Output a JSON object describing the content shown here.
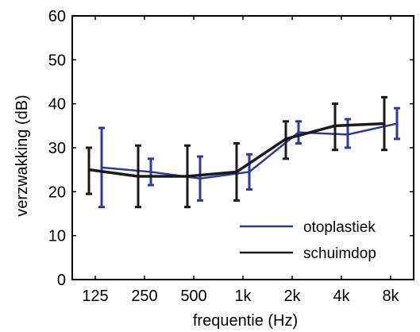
{
  "chart_data": {
    "type": "line",
    "xlabel": "frequentie (Hz)",
    "ylabel": "verzwakking (dB)",
    "categories": [
      "125",
      "250",
      "500",
      "1k",
      "2k",
      "4k",
      "8k"
    ],
    "ylim": [
      0,
      60
    ],
    "yticks": [
      0,
      10,
      20,
      30,
      40,
      50,
      60
    ],
    "grid": false,
    "legend_position": "bottom-right",
    "error_bars": true,
    "series": [
      {
        "name": "otoplastiek",
        "color": "#2b3aa0",
        "values": [
          25.5,
          24.5,
          23,
          24.5,
          33.5,
          33,
          35.5
        ],
        "err_low": [
          16.5,
          21.5,
          18,
          20.5,
          31,
          30,
          32
        ],
        "err_high": [
          34.5,
          27.5,
          28,
          28.5,
          36,
          36.5,
          39
        ]
      },
      {
        "name": "schuimdop",
        "color": "#1a1a1a",
        "values": [
          25,
          23.5,
          23.5,
          24.5,
          32,
          35,
          35.5
        ],
        "err_low": [
          19.5,
          16.5,
          16.5,
          18,
          27.5,
          29.5,
          29.5
        ],
        "err_high": [
          30,
          30.5,
          30.5,
          31,
          36,
          40,
          41.5
        ]
      }
    ]
  }
}
